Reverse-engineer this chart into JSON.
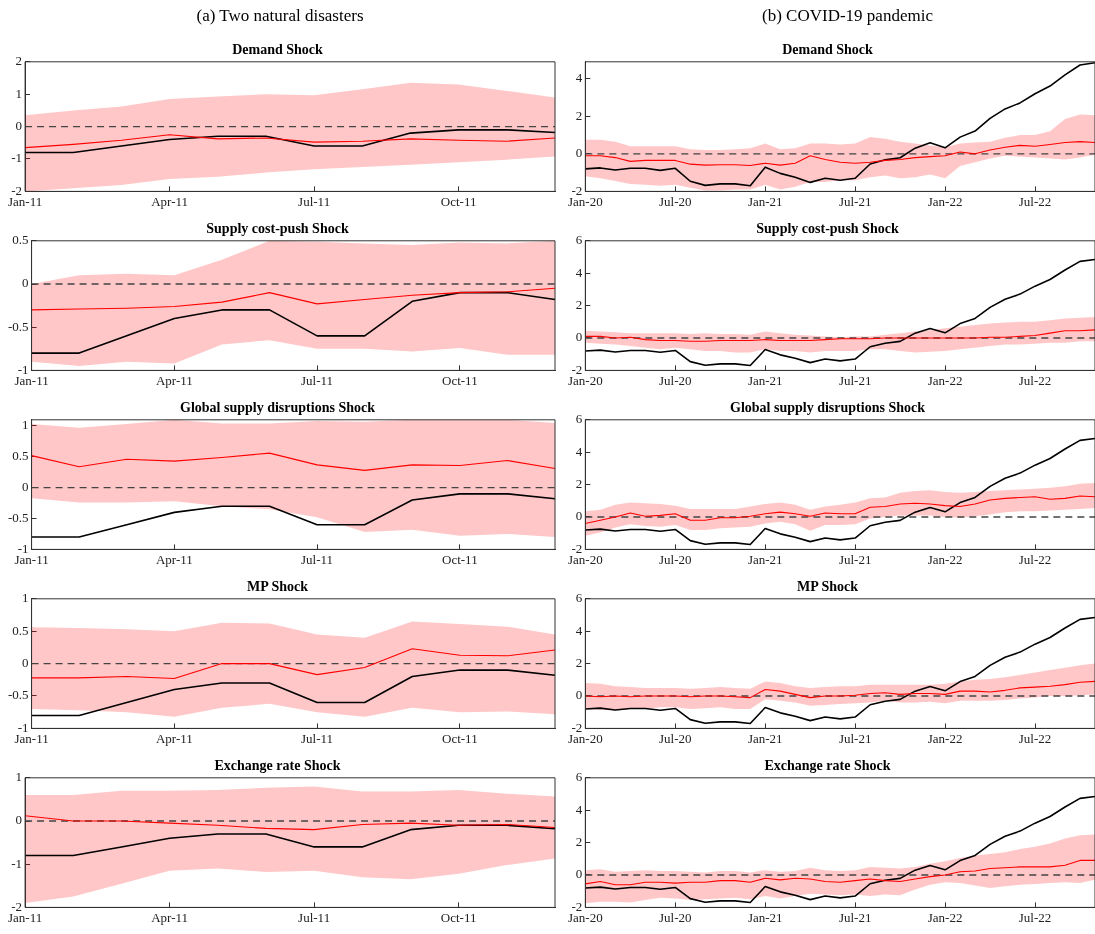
{
  "chart_data": [
    {
      "type": "line",
      "title": "Demand Shock",
      "annotations": [
        "(a) Two natural disasters"
      ],
      "categories": [
        "Jan-11",
        null,
        null,
        "Apr-11",
        null,
        null,
        "Jul-11",
        null,
        null,
        "Oct-11",
        null,
        null
      ],
      "ylim": [
        -2,
        2
      ],
      "yticks": [
        -2,
        -1,
        0,
        1,
        2
      ],
      "series": [
        {
          "color": "#ff0000",
          "values": [
            -0.65,
            -0.55,
            -0.42,
            -0.25,
            -0.38,
            -0.35,
            -0.48,
            -0.45,
            -0.38,
            -0.42,
            -0.45,
            -0.35
          ],
          "lower": [
            -2.0,
            -1.9,
            -1.8,
            -1.62,
            -1.55,
            -1.42,
            -1.32,
            -1.25,
            -1.18,
            -1.1,
            -1.02,
            -0.92
          ],
          "upper": [
            0.35,
            0.5,
            0.62,
            0.85,
            0.93,
            1.0,
            0.97,
            1.15,
            1.35,
            1.3,
            1.1,
            0.9
          ]
        },
        {
          "color": "#000000",
          "values": [
            -0.8,
            -0.8,
            -0.6,
            -0.4,
            -0.3,
            -0.3,
            -0.6,
            -0.6,
            -0.2,
            -0.1,
            -0.1,
            -0.18
          ]
        }
      ],
      "ref_lines": [
        {
          "axis": "y",
          "value": 0,
          "line_style": "dashed",
          "color": "#444444"
        }
      ]
    },
    {
      "type": "line",
      "title": "Supply cost-push Shock",
      "categories": [
        "Jan-11",
        null,
        null,
        "Apr-11",
        null,
        null,
        "Jul-11",
        null,
        null,
        "Oct-11",
        null,
        null
      ],
      "ylim": [
        -1,
        0.5
      ],
      "yticks": [
        -1,
        -0.5,
        0,
        0.5
      ],
      "series": [
        {
          "color": "#ff0000",
          "values": [
            -0.3,
            -0.29,
            -0.28,
            -0.26,
            -0.21,
            -0.1,
            -0.23,
            -0.18,
            -0.13,
            -0.1,
            -0.09,
            -0.05
          ],
          "lower": [
            -0.9,
            -0.95,
            -0.9,
            -0.92,
            -0.7,
            -0.65,
            -0.75,
            -0.75,
            -0.78,
            -0.74,
            -0.82,
            -0.82
          ],
          "upper": [
            0.0,
            0.1,
            0.12,
            0.1,
            0.28,
            0.5,
            0.49,
            0.47,
            0.45,
            0.48,
            0.47,
            0.5
          ]
        },
        {
          "color": "#000000",
          "values": [
            -0.8,
            -0.8,
            -0.6,
            -0.4,
            -0.3,
            -0.3,
            -0.6,
            -0.6,
            -0.2,
            -0.1,
            -0.1,
            -0.18
          ]
        }
      ],
      "ref_lines": [
        {
          "axis": "y",
          "value": 0,
          "line_style": "dashed",
          "color": "#444444"
        }
      ]
    },
    {
      "type": "line",
      "title": "Global supply disruptions Shock",
      "categories": [
        "Jan-11",
        null,
        null,
        "Apr-11",
        null,
        null,
        "Jul-11",
        null,
        null,
        "Oct-11",
        null,
        null
      ],
      "ylim": [
        -1,
        1.1
      ],
      "yticks": [
        -1,
        -0.5,
        0,
        0.5,
        1
      ],
      "series": [
        {
          "color": "#ff0000",
          "values": [
            0.52,
            0.34,
            0.46,
            0.43,
            0.49,
            0.56,
            0.37,
            0.28,
            0.37,
            0.36,
            0.44,
            0.31
          ],
          "lower": [
            -0.17,
            -0.24,
            -0.24,
            -0.22,
            -0.3,
            -0.35,
            -0.48,
            -0.72,
            -0.68,
            -0.78,
            -0.75,
            -0.8
          ],
          "upper": [
            1.03,
            0.97,
            1.03,
            1.1,
            1.04,
            1.04,
            1.08,
            1.07,
            1.1,
            1.1,
            1.1,
            1.05
          ]
        },
        {
          "color": "#000000",
          "values": [
            -0.8,
            -0.8,
            -0.6,
            -0.4,
            -0.3,
            -0.3,
            -0.6,
            -0.6,
            -0.2,
            -0.1,
            -0.1,
            -0.18
          ]
        }
      ],
      "ref_lines": [
        {
          "axis": "y",
          "value": 0,
          "line_style": "dashed",
          "color": "#444444"
        }
      ]
    },
    {
      "type": "line",
      "title": "MP Shock",
      "categories": [
        "Jan-11",
        null,
        null,
        "Apr-11",
        null,
        null,
        "Jul-11",
        null,
        null,
        "Oct-11",
        null,
        null
      ],
      "ylim": [
        -1,
        1
      ],
      "yticks": [
        -1,
        -0.5,
        0,
        0.5,
        1
      ],
      "series": [
        {
          "color": "#ff0000",
          "values": [
            -0.22,
            -0.22,
            -0.2,
            -0.23,
            0.0,
            0.0,
            -0.17,
            -0.06,
            0.23,
            0.13,
            0.12,
            0.21
          ],
          "lower": [
            -0.7,
            -0.72,
            -0.75,
            -0.82,
            -0.68,
            -0.62,
            -0.75,
            -0.82,
            -0.68,
            -0.75,
            -0.74,
            -0.78
          ],
          "upper": [
            0.56,
            0.55,
            0.53,
            0.5,
            0.63,
            0.62,
            0.45,
            0.4,
            0.65,
            0.61,
            0.57,
            0.45
          ]
        },
        {
          "color": "#000000",
          "values": [
            -0.8,
            -0.8,
            -0.6,
            -0.4,
            -0.3,
            -0.3,
            -0.6,
            -0.6,
            -0.2,
            -0.1,
            -0.1,
            -0.18
          ]
        }
      ],
      "ref_lines": [
        {
          "axis": "y",
          "value": 0,
          "line_style": "dashed",
          "color": "#444444"
        }
      ]
    },
    {
      "type": "line",
      "title": "Exchange rate Shock",
      "categories": [
        "Jan-11",
        null,
        null,
        "Apr-11",
        null,
        null,
        "Jul-11",
        null,
        null,
        "Oct-11",
        null,
        null
      ],
      "ylim": [
        -2,
        1
      ],
      "yticks": [
        -2,
        -1,
        0,
        1
      ],
      "series": [
        {
          "color": "#ff0000",
          "values": [
            0.12,
            0.0,
            0.0,
            -0.05,
            -0.1,
            -0.17,
            -0.2,
            -0.08,
            -0.05,
            -0.1,
            -0.08,
            -0.15
          ],
          "lower": [
            -1.9,
            -1.75,
            -1.45,
            -1.15,
            -1.1,
            -1.18,
            -1.15,
            -1.3,
            -1.35,
            -1.22,
            -1.02,
            -0.87
          ],
          "upper": [
            0.6,
            0.6,
            0.7,
            0.7,
            0.72,
            0.77,
            0.8,
            0.68,
            0.68,
            0.72,
            0.63,
            0.57
          ]
        },
        {
          "color": "#000000",
          "values": [
            -0.8,
            -0.8,
            -0.6,
            -0.4,
            -0.3,
            -0.3,
            -0.6,
            -0.6,
            -0.2,
            -0.1,
            -0.1,
            -0.18
          ]
        }
      ],
      "ref_lines": [
        {
          "axis": "y",
          "value": 0,
          "line_style": "dashed",
          "color": "#444444"
        }
      ]
    },
    {
      "type": "line",
      "title": "Demand Shock",
      "annotations": [
        "(b) COVID-19 pandemic"
      ],
      "categories": [
        "Jan-20",
        null,
        null,
        null,
        null,
        null,
        "Jul-20",
        null,
        null,
        null,
        null,
        null,
        "Jan-21",
        null,
        null,
        null,
        null,
        null,
        "Jul-21",
        null,
        null,
        null,
        null,
        null,
        "Jan-22",
        null,
        null,
        null,
        null,
        null,
        "Jul-22",
        null,
        null,
        null,
        null
      ],
      "ylim": [
        -2,
        4.9
      ],
      "yticks": [
        -2,
        0,
        2,
        4
      ],
      "series": [
        {
          "color": "#ff0000",
          "values": [
            -0.1,
            -0.1,
            -0.2,
            -0.4,
            -0.35,
            -0.35,
            -0.35,
            -0.55,
            -0.6,
            -0.58,
            -0.58,
            -0.62,
            -0.5,
            -0.6,
            -0.5,
            -0.1,
            -0.3,
            -0.45,
            -0.5,
            -0.45,
            -0.35,
            -0.3,
            -0.2,
            -0.15,
            -0.1,
            0.1,
            0.0,
            0.2,
            0.35,
            0.45,
            0.4,
            0.5,
            0.6,
            0.65,
            0.6
          ],
          "lower": [
            -1.2,
            -1.3,
            -1.45,
            -1.6,
            -1.65,
            -1.7,
            -1.65,
            -1.8,
            -1.95,
            -1.95,
            -1.9,
            -1.9,
            -1.65,
            -1.9,
            -1.75,
            -1.5,
            -1.5,
            -1.4,
            -1.4,
            -1.25,
            -1.15,
            -1.3,
            -1.25,
            -1.1,
            -1.3,
            -0.65,
            -0.45,
            -0.25,
            -0.1,
            -0.15,
            -0.2,
            -0.25,
            -0.3,
            -0.2,
            -0.05
          ],
          "upper": [
            0.75,
            0.75,
            0.65,
            0.4,
            0.4,
            0.4,
            0.4,
            0.25,
            0.2,
            0.2,
            0.25,
            0.3,
            0.55,
            0.25,
            0.3,
            0.55,
            0.55,
            0.5,
            0.55,
            0.9,
            0.8,
            0.65,
            0.55,
            0.45,
            0.35,
            0.55,
            0.6,
            0.65,
            0.85,
            1.0,
            1.0,
            1.2,
            1.85,
            2.1,
            2.05
          ]
        },
        {
          "color": "#000000",
          "values": [
            -0.8,
            -0.75,
            -0.86,
            -0.77,
            -0.77,
            -0.88,
            -0.77,
            -1.46,
            -1.68,
            -1.6,
            -1.6,
            -1.7,
            -0.71,
            -1.04,
            -1.25,
            -1.52,
            -1.3,
            -1.41,
            -1.3,
            -0.54,
            -0.32,
            -0.21,
            0.3,
            0.59,
            0.32,
            0.89,
            1.21,
            1.89,
            2.39,
            2.71,
            3.2,
            3.61,
            4.2,
            4.73,
            4.85
          ]
        }
      ],
      "ref_lines": [
        {
          "axis": "y",
          "value": 0,
          "line_style": "dashed",
          "color": "#444444"
        }
      ]
    },
    {
      "type": "line",
      "title": "Supply cost-push Shock",
      "categories": [
        "Jan-20",
        null,
        null,
        null,
        null,
        null,
        "Jul-20",
        null,
        null,
        null,
        null,
        null,
        "Jan-21",
        null,
        null,
        null,
        null,
        null,
        "Jul-21",
        null,
        null,
        null,
        null,
        null,
        "Jan-22",
        null,
        null,
        null,
        null,
        null,
        "Jul-22",
        null,
        null,
        null,
        null
      ],
      "ylim": [
        -2,
        6
      ],
      "yticks": [
        -2,
        0,
        2,
        4,
        6
      ],
      "series": [
        {
          "color": "#ff0000",
          "values": [
            0.1,
            0.1,
            0.0,
            0.05,
            -0.1,
            -0.15,
            -0.15,
            -0.2,
            -0.2,
            -0.15,
            -0.15,
            -0.15,
            -0.1,
            -0.15,
            -0.15,
            -0.15,
            -0.1,
            -0.05,
            -0.05,
            -0.05,
            0,
            0,
            0,
            0,
            0,
            0,
            0,
            0.05,
            0.05,
            0.1,
            0.15,
            0.3,
            0.45,
            0.45,
            0.5
          ],
          "lower": [
            -0.3,
            -0.35,
            -0.4,
            -0.5,
            -0.6,
            -0.7,
            -0.6,
            -0.7,
            -0.8,
            -0.8,
            -0.9,
            -0.9,
            -0.7,
            -0.8,
            -0.8,
            -0.9,
            -0.8,
            -0.8,
            -0.8,
            -0.7,
            -0.7,
            -0.8,
            -0.9,
            -0.85,
            -0.8,
            -0.7,
            -0.6,
            -0.5,
            -0.4,
            -0.4,
            -0.35,
            -0.3,
            -0.3,
            -0.2,
            -0.2
          ],
          "upper": [
            0.45,
            0.4,
            0.35,
            0.3,
            0.3,
            0.3,
            0.3,
            0.25,
            0.3,
            0.25,
            0.25,
            0.2,
            0.4,
            0.3,
            0.2,
            0.15,
            0.1,
            0.05,
            0.1,
            0.1,
            0.2,
            0.3,
            0.4,
            0.5,
            0.6,
            0.7,
            0.8,
            0.9,
            0.95,
            1.0,
            1.0,
            1.1,
            1.2,
            1.25,
            1.3
          ]
        },
        {
          "color": "#000000",
          "values": [
            -0.8,
            -0.75,
            -0.86,
            -0.77,
            -0.77,
            -0.88,
            -0.77,
            -1.46,
            -1.68,
            -1.6,
            -1.6,
            -1.7,
            -0.71,
            -1.04,
            -1.25,
            -1.52,
            -1.3,
            -1.41,
            -1.3,
            -0.54,
            -0.32,
            -0.21,
            0.3,
            0.59,
            0.32,
            0.89,
            1.21,
            1.89,
            2.39,
            2.71,
            3.2,
            3.61,
            4.2,
            4.73,
            4.85
          ]
        }
      ],
      "ref_lines": [
        {
          "axis": "y",
          "value": 0,
          "line_style": "dashed",
          "color": "#444444"
        }
      ]
    },
    {
      "type": "line",
      "title": "Global supply disruptions Shock",
      "categories": [
        "Jan-20",
        null,
        null,
        null,
        null,
        null,
        "Jul-20",
        null,
        null,
        null,
        null,
        null,
        "Jan-21",
        null,
        null,
        null,
        null,
        null,
        "Jul-21",
        null,
        null,
        null,
        null,
        null,
        "Jan-22",
        null,
        null,
        null,
        null,
        null,
        "Jul-22",
        null,
        null,
        null,
        null
      ],
      "ylim": [
        -2,
        6
      ],
      "yticks": [
        -2,
        0,
        2,
        4,
        6
      ],
      "series": [
        {
          "color": "#ff0000",
          "values": [
            -0.4,
            -0.2,
            0.0,
            0.25,
            0.05,
            0.1,
            0.2,
            -0.2,
            -0.2,
            -0.05,
            -0.05,
            0.05,
            0.2,
            0.3,
            0.2,
            0.05,
            0.25,
            0.2,
            0.2,
            0.6,
            0.65,
            0.8,
            0.85,
            0.8,
            0.7,
            0.65,
            0.8,
            1.05,
            1.15,
            1.2,
            1.25,
            1.1,
            1.15,
            1.3,
            1.25
          ],
          "lower": [
            -1.15,
            -0.95,
            -0.65,
            -0.45,
            -0.55,
            -0.6,
            -0.5,
            -0.8,
            -0.8,
            -0.7,
            -0.65,
            -0.6,
            -0.4,
            -0.3,
            -0.45,
            -0.85,
            -0.5,
            -0.5,
            -0.45,
            -0.1,
            0.0,
            0.1,
            0.1,
            0.1,
            0.0,
            -0.05,
            0.05,
            0.15,
            0.3,
            0.35,
            0.35,
            0.4,
            0.45,
            0.5,
            0.55
          ],
          "upper": [
            0.35,
            0.45,
            0.75,
            0.9,
            0.85,
            0.8,
            0.7,
            0.5,
            0.5,
            0.5,
            0.5,
            0.65,
            0.8,
            0.9,
            0.75,
            0.45,
            0.65,
            0.75,
            0.9,
            1.15,
            1.2,
            1.5,
            1.6,
            1.65,
            1.55,
            1.5,
            1.55,
            1.6,
            1.65,
            1.7,
            1.75,
            1.8,
            1.9,
            2.05,
            2.1
          ]
        },
        {
          "color": "#000000",
          "values": [
            -0.8,
            -0.75,
            -0.86,
            -0.77,
            -0.77,
            -0.88,
            -0.77,
            -1.46,
            -1.68,
            -1.6,
            -1.6,
            -1.7,
            -0.71,
            -1.04,
            -1.25,
            -1.52,
            -1.3,
            -1.41,
            -1.3,
            -0.54,
            -0.32,
            -0.21,
            0.3,
            0.59,
            0.32,
            0.89,
            1.21,
            1.89,
            2.39,
            2.71,
            3.2,
            3.61,
            4.2,
            4.73,
            4.85
          ]
        }
      ],
      "ref_lines": [
        {
          "axis": "y",
          "value": 0,
          "line_style": "dashed",
          "color": "#444444"
        }
      ]
    },
    {
      "type": "line",
      "title": "MP Shock",
      "categories": [
        "Jan-20",
        null,
        null,
        null,
        null,
        null,
        "Jul-20",
        null,
        null,
        null,
        null,
        null,
        "Jan-21",
        null,
        null,
        null,
        null,
        null,
        "Jul-21",
        null,
        null,
        null,
        null,
        null,
        "Jan-22",
        null,
        null,
        null,
        null,
        null,
        "Jul-22",
        null,
        null,
        null,
        null
      ],
      "ylim": [
        -2,
        6
      ],
      "yticks": [
        -2,
        0,
        2,
        4,
        6
      ],
      "series": [
        {
          "color": "#ff0000",
          "values": [
            0,
            -0.05,
            0,
            -0.05,
            0,
            0,
            0,
            -0.05,
            0,
            0,
            -0.05,
            -0.1,
            0.4,
            0.3,
            0.1,
            -0.1,
            0,
            0.0,
            0.05,
            0.15,
            0.2,
            0.1,
            0.15,
            0.15,
            0.1,
            0.3,
            0.3,
            0.25,
            0.35,
            0.5,
            0.55,
            0.6,
            0.7,
            0.85,
            0.9
          ],
          "lower": [
            -0.8,
            -0.85,
            -0.9,
            -0.8,
            -0.8,
            -0.7,
            -0.7,
            -0.8,
            -0.75,
            -0.7,
            -0.8,
            -0.8,
            -0.2,
            -0.3,
            -0.4,
            -0.6,
            -0.55,
            -0.5,
            -0.45,
            -0.4,
            -0.3,
            -0.4,
            -0.4,
            -0.35,
            -0.45,
            -0.3,
            -0.3,
            -0.3,
            -0.25,
            -0.15,
            -0.1,
            0.0,
            0.0,
            0.05,
            0.1
          ],
          "upper": [
            0.8,
            0.75,
            0.6,
            0.55,
            0.5,
            0.5,
            0.5,
            0.45,
            0.5,
            0.55,
            0.5,
            0.45,
            0.9,
            0.8,
            0.6,
            0.5,
            0.55,
            0.6,
            0.6,
            0.7,
            0.7,
            0.7,
            0.7,
            0.7,
            0.75,
            0.9,
            1.0,
            1.05,
            1.15,
            1.3,
            1.45,
            1.6,
            1.75,
            1.9,
            2.0
          ]
        },
        {
          "color": "#000000",
          "values": [
            -0.8,
            -0.75,
            -0.86,
            -0.77,
            -0.77,
            -0.88,
            -0.77,
            -1.46,
            -1.68,
            -1.6,
            -1.6,
            -1.7,
            -0.71,
            -1.04,
            -1.25,
            -1.52,
            -1.3,
            -1.41,
            -1.3,
            -0.54,
            -0.32,
            -0.21,
            0.3,
            0.59,
            0.32,
            0.89,
            1.21,
            1.89,
            2.39,
            2.71,
            3.2,
            3.61,
            4.2,
            4.73,
            4.85
          ]
        }
      ],
      "ref_lines": [
        {
          "axis": "y",
          "value": 0,
          "line_style": "dashed",
          "color": "#444444"
        }
      ]
    },
    {
      "type": "line",
      "title": "Exchange rate Shock",
      "categories": [
        "Jan-20",
        null,
        null,
        null,
        null,
        null,
        "Jul-20",
        null,
        null,
        null,
        null,
        null,
        "Jan-21",
        null,
        null,
        null,
        null,
        null,
        "Jul-21",
        null,
        null,
        null,
        null,
        null,
        "Jan-22",
        null,
        null,
        null,
        null,
        null,
        "Jul-22",
        null,
        null,
        null,
        null
      ],
      "ylim": [
        -2,
        6
      ],
      "yticks": [
        -2,
        0,
        2,
        4,
        6
      ],
      "series": [
        {
          "color": "#ff0000",
          "values": [
            -0.55,
            -0.4,
            -0.6,
            -0.6,
            -0.45,
            -0.45,
            -0.5,
            -0.45,
            -0.45,
            -0.35,
            -0.35,
            -0.45,
            -0.2,
            -0.3,
            -0.2,
            -0.25,
            -0.4,
            -0.45,
            -0.35,
            -0.25,
            -0.35,
            -0.4,
            -0.25,
            -0.1,
            0.0,
            0.2,
            0.25,
            0.4,
            0.45,
            0.5,
            0.5,
            0.5,
            0.6,
            0.9,
            0.9
          ],
          "lower": [
            -1.75,
            -1.65,
            -1.65,
            -1.7,
            -1.55,
            -1.4,
            -1.45,
            -1.55,
            -1.5,
            -1.45,
            -1.4,
            -1.5,
            -1.3,
            -1.45,
            -1.3,
            -1.15,
            -1.2,
            -1.25,
            -1.2,
            -1.3,
            -1.2,
            -1.25,
            -0.9,
            -0.6,
            -0.45,
            -0.5,
            -0.65,
            -0.8,
            -0.7,
            -0.6,
            -0.55,
            -0.5,
            -0.45,
            -0.5,
            -0.3
          ],
          "upper": [
            0.3,
            0.35,
            0.2,
            0.25,
            0.3,
            0.25,
            0.25,
            0.2,
            0.15,
            0.25,
            0.25,
            0.15,
            0.3,
            0.2,
            0.25,
            0.45,
            0.3,
            0.25,
            0.3,
            0.5,
            0.45,
            0.4,
            0.5,
            0.7,
            0.85,
            1.05,
            1.2,
            1.3,
            1.4,
            1.6,
            1.75,
            1.95,
            2.25,
            2.45,
            2.5
          ]
        },
        {
          "color": "#000000",
          "values": [
            -0.8,
            -0.75,
            -0.86,
            -0.77,
            -0.77,
            -0.88,
            -0.77,
            -1.46,
            -1.68,
            -1.6,
            -1.6,
            -1.7,
            -0.71,
            -1.04,
            -1.25,
            -1.52,
            -1.3,
            -1.41,
            -1.3,
            -0.54,
            -0.32,
            -0.21,
            0.3,
            0.59,
            0.32,
            0.89,
            1.21,
            1.89,
            2.39,
            2.71,
            3.2,
            3.61,
            4.2,
            4.73,
            4.85
          ]
        }
      ],
      "ref_lines": [
        {
          "axis": "y",
          "value": 0,
          "line_style": "dashed",
          "color": "#444444"
        }
      ]
    }
  ]
}
